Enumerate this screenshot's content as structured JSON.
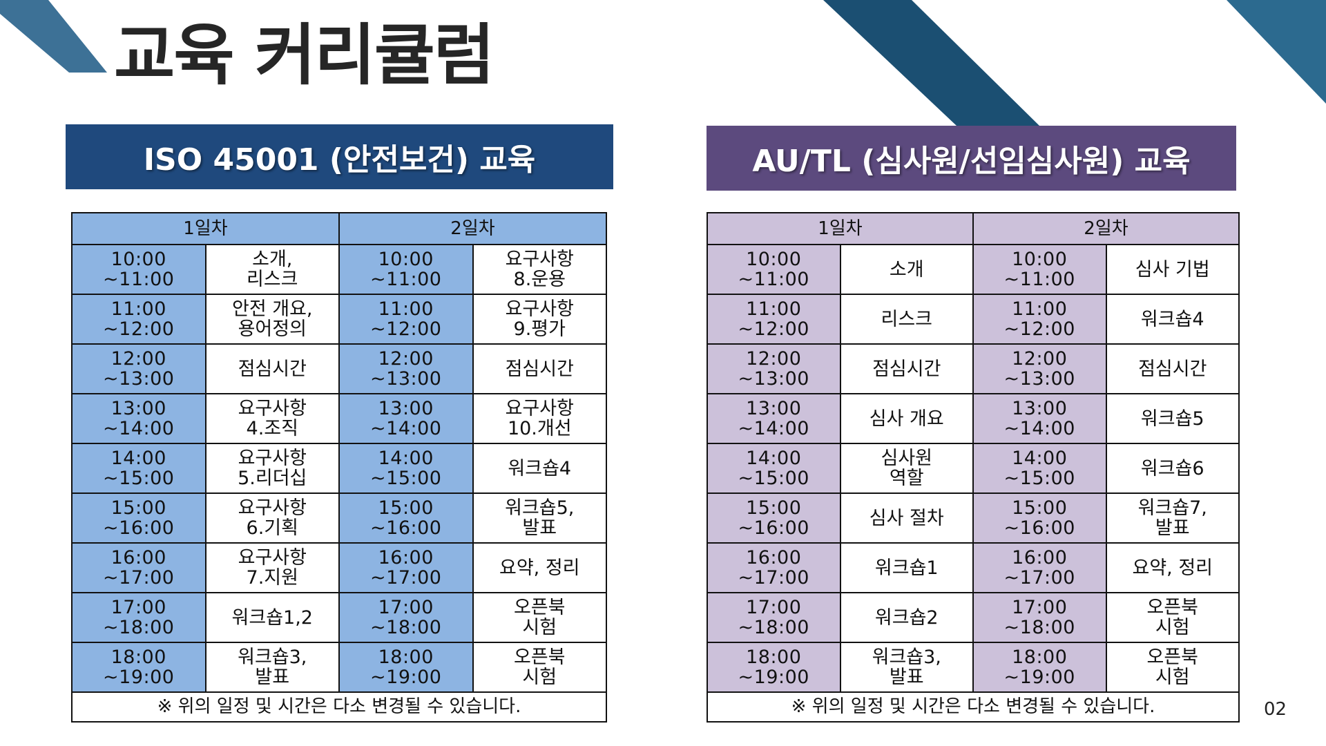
{
  "title": "교육 커리큘럼",
  "page_number": "02",
  "colors": {
    "left_accent": "#1f497d",
    "left_cell": "#8db4e2",
    "right_accent": "#5c4a7e",
    "right_cell": "#ccc1da"
  },
  "left": {
    "banner": "ISO 45001 (안전보건) 교육",
    "day1": "1일차",
    "day2": "2일차",
    "rows": [
      {
        "t1": "10:00\n~11:00",
        "s1": "소개,\n리스크",
        "t2": "10:00\n~11:00",
        "s2": "요구사항\n8.운용"
      },
      {
        "t1": "11:00\n~12:00",
        "s1": "안전 개요,\n용어정의",
        "t2": "11:00\n~12:00",
        "s2": "요구사항\n9.평가"
      },
      {
        "t1": "12:00\n~13:00",
        "s1": "점심시간",
        "t2": "12:00\n~13:00",
        "s2": "점심시간"
      },
      {
        "t1": "13:00\n~14:00",
        "s1": "요구사항\n4.조직",
        "t2": "13:00\n~14:00",
        "s2": "요구사항\n10.개선"
      },
      {
        "t1": "14:00\n~15:00",
        "s1": "요구사항\n5.리더십",
        "t2": "14:00\n~15:00",
        "s2": "워크숍4"
      },
      {
        "t1": "15:00\n~16:00",
        "s1": "요구사항\n6.기획",
        "t2": "15:00\n~16:00",
        "s2": "워크숍5,\n발표"
      },
      {
        "t1": "16:00\n~17:00",
        "s1": "요구사항\n7.지원",
        "t2": "16:00\n~17:00",
        "s2": "요약, 정리"
      },
      {
        "t1": "17:00\n~18:00",
        "s1": "워크숍1,2",
        "t2": "17:00\n~18:00",
        "s2": "오픈북\n시험"
      },
      {
        "t1": "18:00\n~19:00",
        "s1": "워크숍3,\n발표",
        "t2": "18:00\n~19:00",
        "s2": "오픈북\n시험"
      }
    ],
    "footnote": "※ 위의 일정 및 시간은 다소 변경될 수 있습니다."
  },
  "right": {
    "banner": "AU/TL (심사원/선임심사원) 교육",
    "day1": "1일차",
    "day2": "2일차",
    "rows": [
      {
        "t1": "10:00\n~11:00",
        "s1": "소개",
        "t2": "10:00\n~11:00",
        "s2": "심사 기법"
      },
      {
        "t1": "11:00\n~12:00",
        "s1": "리스크",
        "t2": "11:00\n~12:00",
        "s2": "워크숍4"
      },
      {
        "t1": "12:00\n~13:00",
        "s1": "점심시간",
        "t2": "12:00\n~13:00",
        "s2": "점심시간"
      },
      {
        "t1": "13:00\n~14:00",
        "s1": "심사 개요",
        "t2": "13:00\n~14:00",
        "s2": "워크숍5"
      },
      {
        "t1": "14:00\n~15:00",
        "s1": "심사원\n역할",
        "t2": "14:00\n~15:00",
        "s2": "워크숍6"
      },
      {
        "t1": "15:00\n~16:00",
        "s1": "심사 절차",
        "t2": "15:00\n~16:00",
        "s2": "워크숍7,\n발표"
      },
      {
        "t1": "16:00\n~17:00",
        "s1": "워크숍1",
        "t2": "16:00\n~17:00",
        "s2": "요약, 정리"
      },
      {
        "t1": "17:00\n~18:00",
        "s1": "워크숍2",
        "t2": "17:00\n~18:00",
        "s2": "오픈북\n시험"
      },
      {
        "t1": "18:00\n~19:00",
        "s1": "워크숍3,\n발표",
        "t2": "18:00\n~19:00",
        "s2": "오픈북\n시험"
      }
    ],
    "footnote": "※ 위의 일정 및 시간은 다소 변경될 수 있습니다."
  }
}
